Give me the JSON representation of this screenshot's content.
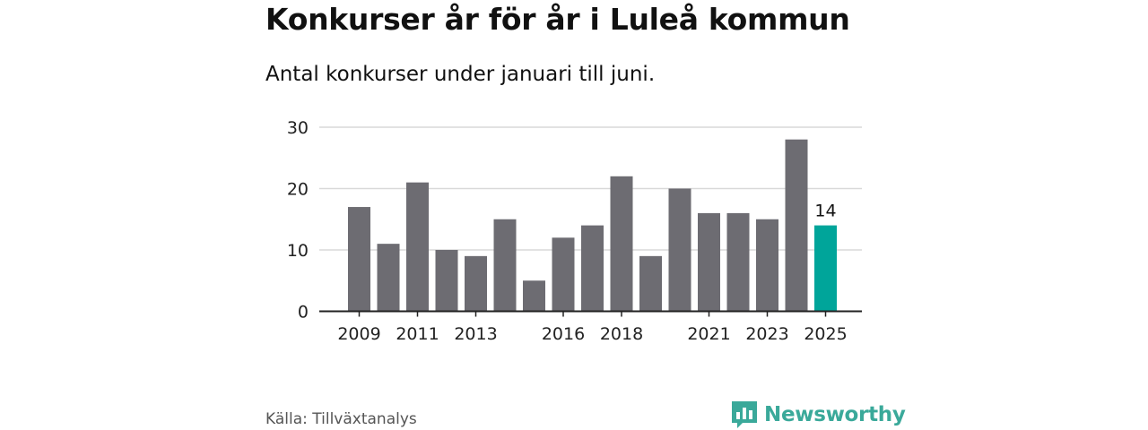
{
  "header": {
    "title": "Konkurser år för år i Luleå kommun",
    "subtitle": "Antal konkurser under januari till juni."
  },
  "footer": {
    "source": "Källa: Tillväxtanalys",
    "brand": "Newsworthy",
    "brand_icon": "bar-chart-speech-bubble-icon"
  },
  "colors": {
    "bar": "#6d6c72",
    "highlight": "#00a59a",
    "grid": "#d9d9d9",
    "axis": "#222222",
    "brand": "#3aa99a"
  },
  "chart_data": {
    "type": "bar",
    "title": "Konkurser år för år i Luleå kommun",
    "subtitle": "Antal konkurser under januari till juni.",
    "xlabel": "",
    "ylabel": "",
    "categories": [
      "2009",
      "2010",
      "2011",
      "2012",
      "2013",
      "2014",
      "2015",
      "2016",
      "2017",
      "2018",
      "2019",
      "2020",
      "2021",
      "2022",
      "2023",
      "2024",
      "2025"
    ],
    "values": [
      17,
      11,
      21,
      10,
      9,
      15,
      5,
      12,
      14,
      22,
      9,
      20,
      16,
      16,
      15,
      28,
      14
    ],
    "x_tick_labels": [
      "2009",
      "2011",
      "2013",
      "2016",
      "2018",
      "2021",
      "2023",
      "2025"
    ],
    "y_ticks": [
      0,
      10,
      20,
      30
    ],
    "ylim": [
      0,
      30
    ],
    "grid": true,
    "highlight_category": "2025",
    "annotations": [
      {
        "category": "2025",
        "text": "14"
      }
    ],
    "legend": "none"
  }
}
